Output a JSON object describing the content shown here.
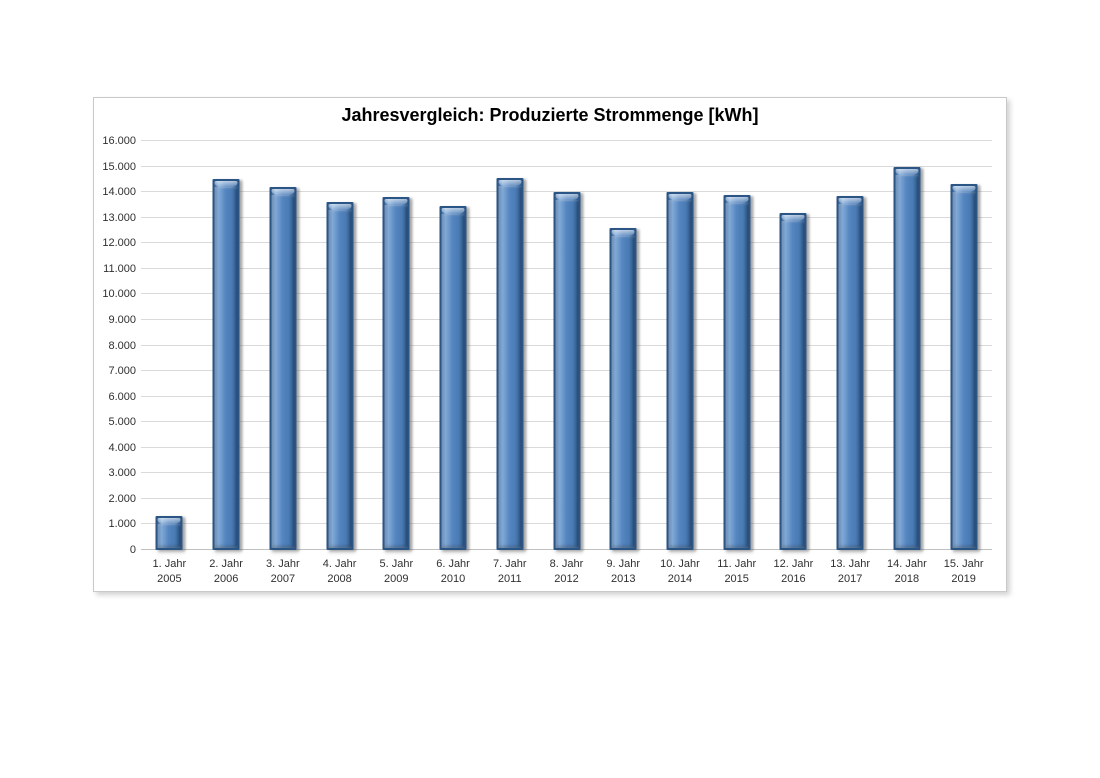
{
  "chart_data": {
    "type": "bar",
    "title": "Jahresvergleich: Produzierte Strommenge [kWh]",
    "xlabel": "",
    "ylabel": "",
    "ylim": [
      0,
      16000
    ],
    "y_tick_step": 1000,
    "y_tick_labels": [
      "0",
      "1.000",
      "2.000",
      "3.000",
      "4.000",
      "5.000",
      "6.000",
      "7.000",
      "8.000",
      "9.000",
      "10.000",
      "11.000",
      "12.000",
      "13.000",
      "14.000",
      "15.000",
      "16.000"
    ],
    "grid": true,
    "legend": "none",
    "categories": [
      {
        "label": "1. Jahr",
        "year": "2005"
      },
      {
        "label": "2. Jahr",
        "year": "2006"
      },
      {
        "label": "3. Jahr",
        "year": "2007"
      },
      {
        "label": "4. Jahr",
        "year": "2008"
      },
      {
        "label": "5. Jahr",
        "year": "2009"
      },
      {
        "label": "6. Jahr",
        "year": "2010"
      },
      {
        "label": "7. Jahr",
        "year": "2011"
      },
      {
        "label": "8. Jahr",
        "year": "2012"
      },
      {
        "label": "9. Jahr",
        "year": "2013"
      },
      {
        "label": "10. Jahr",
        "year": "2014"
      },
      {
        "label": "11. Jahr",
        "year": "2015"
      },
      {
        "label": "12. Jahr",
        "year": "2016"
      },
      {
        "label": "13. Jahr",
        "year": "2017"
      },
      {
        "label": "14. Jahr",
        "year": "2018"
      },
      {
        "label": "15. Jahr",
        "year": "2019"
      }
    ],
    "values": [
      1350,
      14500,
      14200,
      13600,
      13800,
      13450,
      14550,
      14000,
      12600,
      14000,
      13900,
      13200,
      13850,
      15000,
      14300
    ],
    "colors": {
      "bar_fill": "#4f81bd",
      "bar_border": "#2b5585",
      "gridline": "#dadada",
      "title_text": "#000000",
      "tick_text": "#303030"
    }
  }
}
